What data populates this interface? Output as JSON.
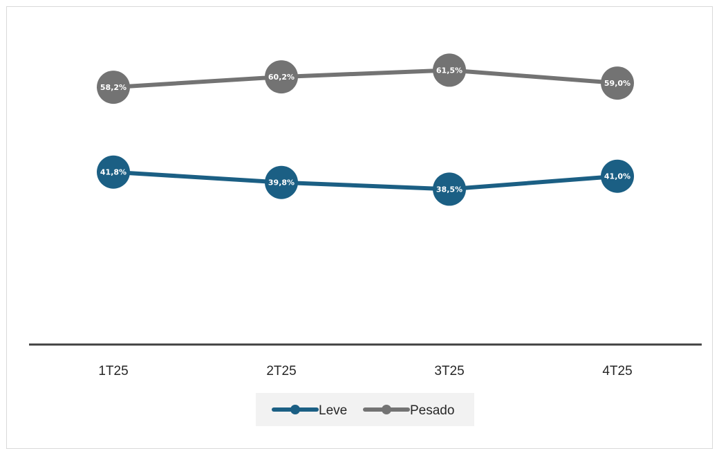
{
  "chart_data": {
    "type": "line",
    "title": "",
    "xlabel": "",
    "ylabel": "",
    "categories": [
      "1T25",
      "2T25",
      "3T25",
      "4T25"
    ],
    "ylim": [
      0,
      70
    ],
    "grid": false,
    "legend_position": "bottom",
    "series": [
      {
        "name": "Leve",
        "color": "#1b5f84",
        "values": [
          41.8,
          39.8,
          38.5,
          41.0
        ],
        "labels": [
          "41,8%",
          "39,8%",
          "38,5%",
          "41,0%"
        ]
      },
      {
        "name": "Pesado",
        "color": "#737373",
        "values": [
          58.2,
          60.2,
          61.5,
          59.0
        ],
        "labels": [
          "58,2%",
          "60,2%",
          "61,5%",
          "59,0%"
        ]
      }
    ]
  },
  "colors": {
    "axis": "#404040",
    "legend_bg": "#f2f2f2"
  }
}
